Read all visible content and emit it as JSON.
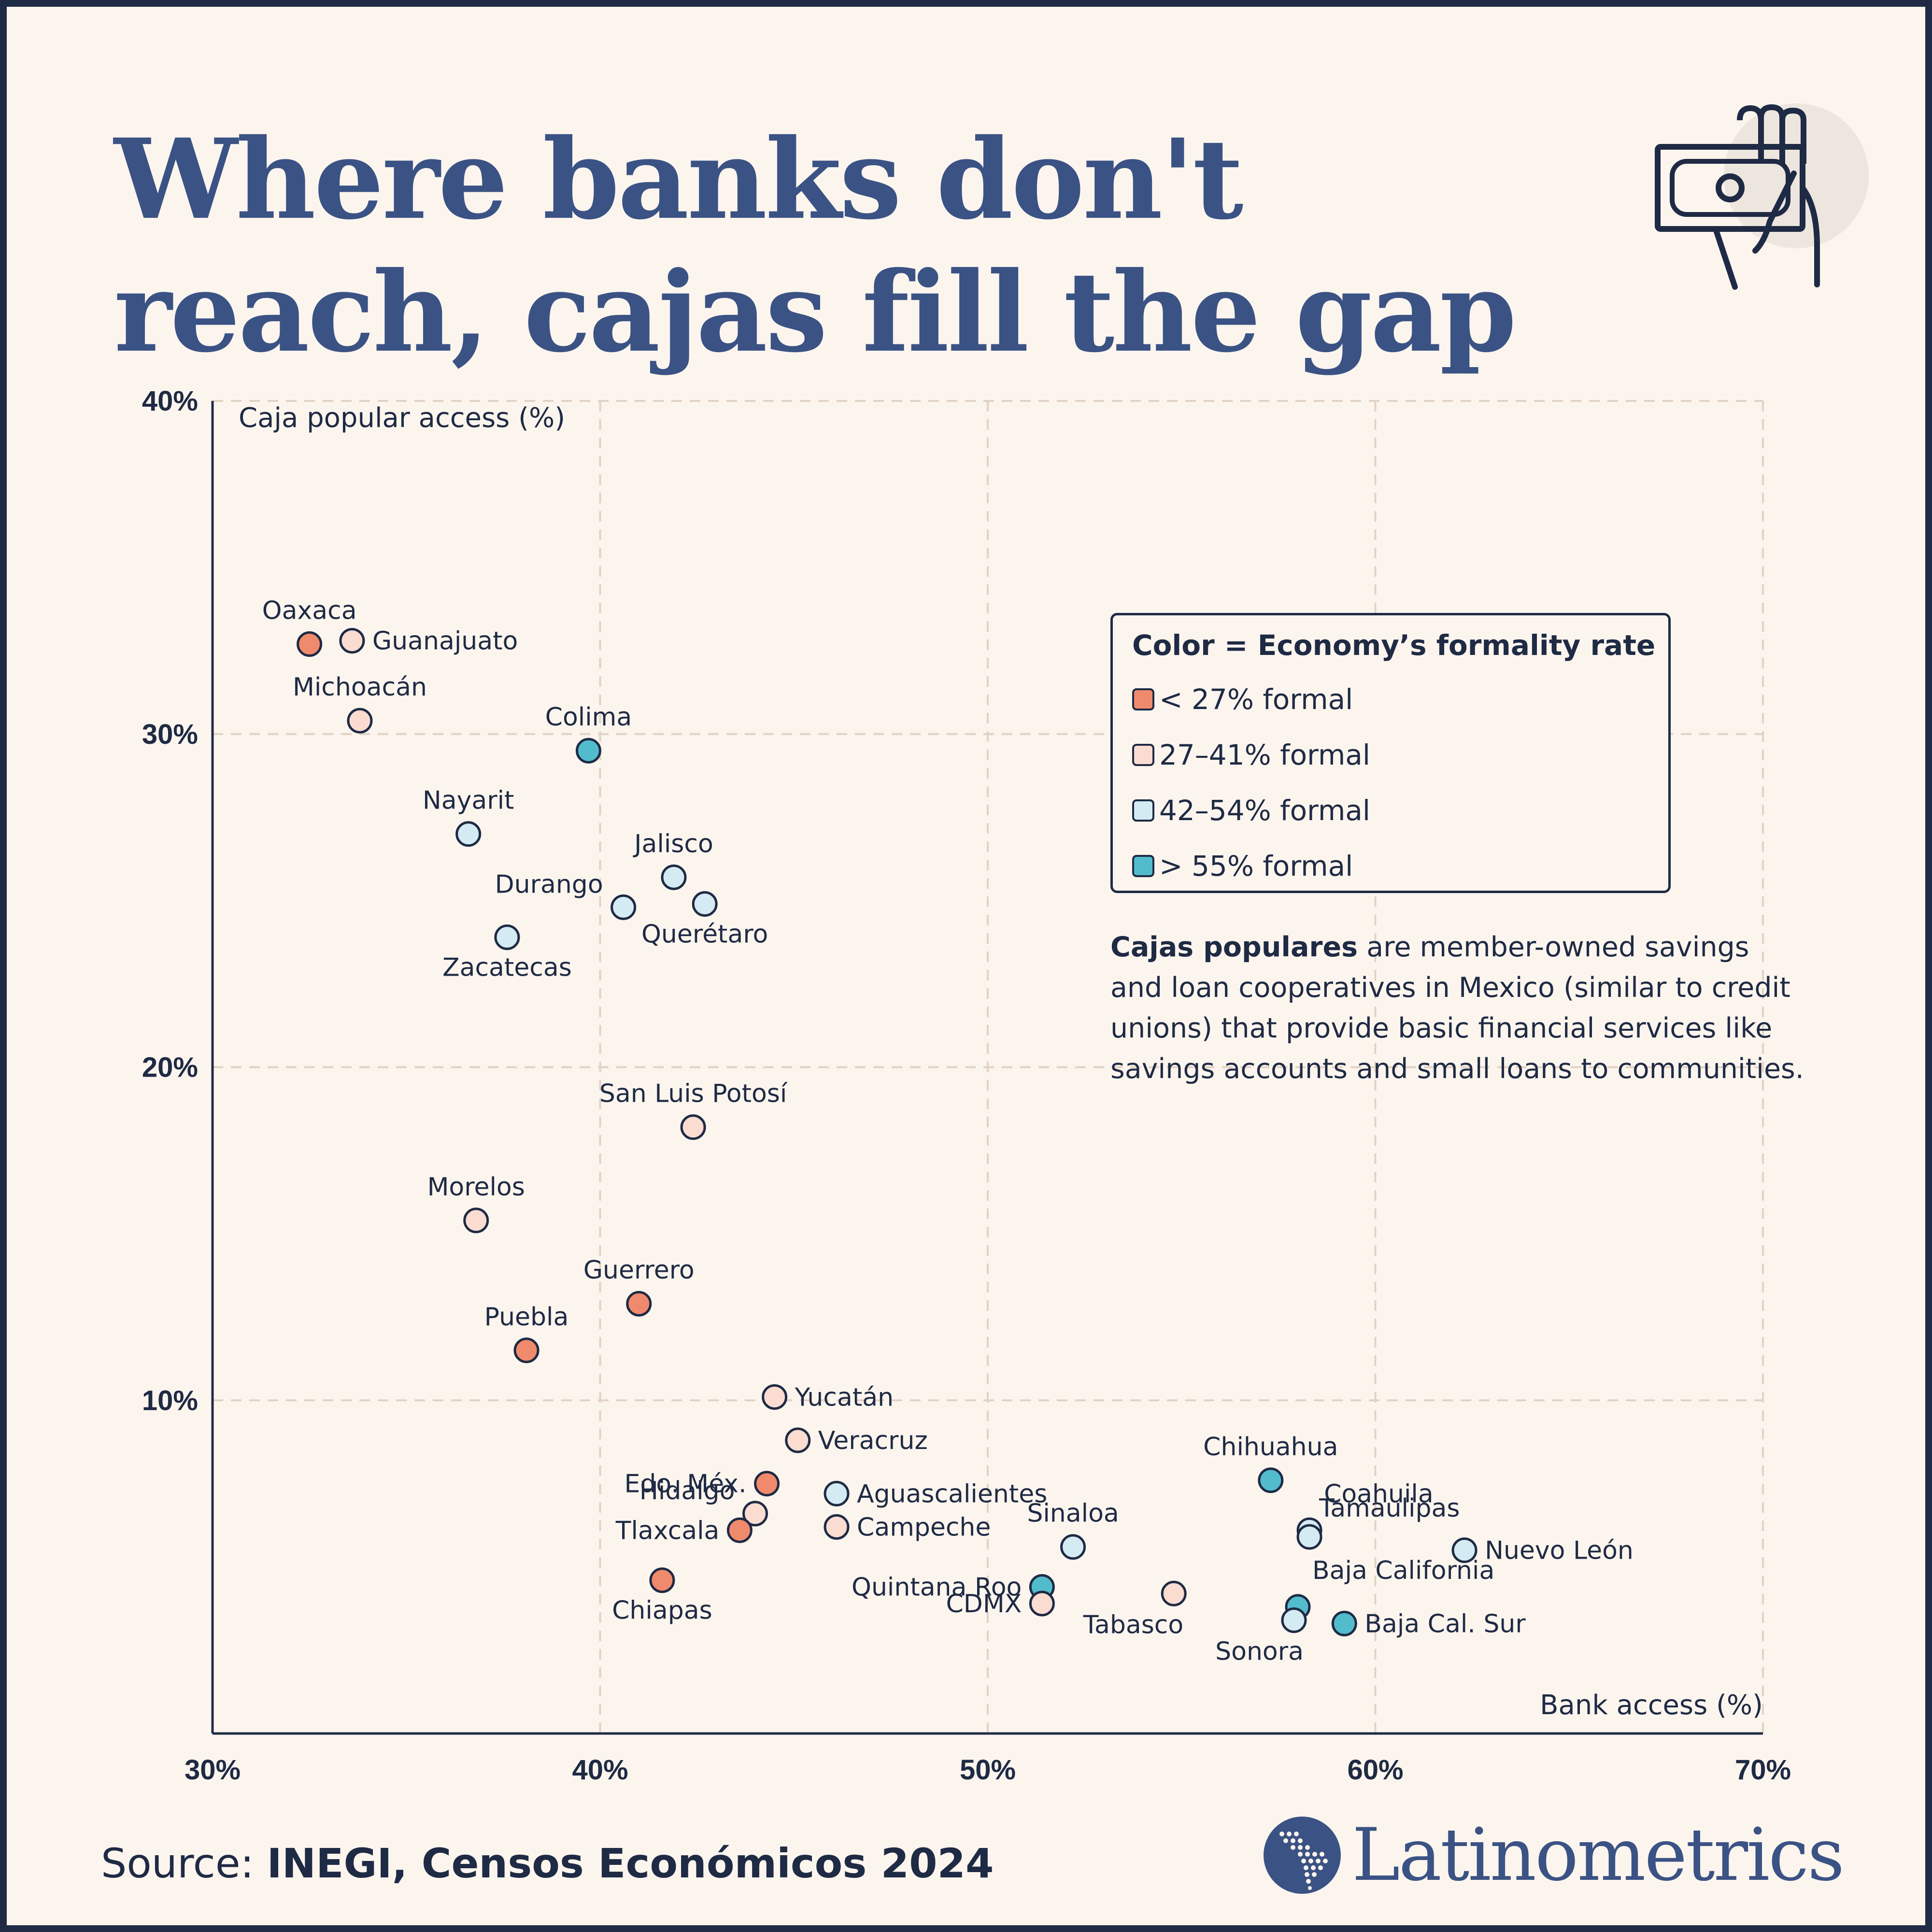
{
  "title": "Where banks don't reach, cajas fill the gap",
  "colors": {
    "background": "#fbf5ee",
    "frame": "#1f2a44",
    "title": "#3b5284",
    "text": "#1f2a44"
  },
  "icons": {
    "header": "money-hand-icon",
    "brand": "latin-america-map-icon"
  },
  "legend": {
    "title": "Color = Economy’s formality rate",
    "items": [
      {
        "key": "lt27",
        "label": "< 27% formal",
        "color": "#f08a6c"
      },
      {
        "key": "27_41",
        "label": "27–41% formal",
        "color": "#fadcd1"
      },
      {
        "key": "42_54",
        "label": "42–54% formal",
        "color": "#d4ebf3"
      },
      {
        "key": "gt55",
        "label": "> 55% formal",
        "color": "#52bccc"
      }
    ]
  },
  "note": {
    "bold": "Cajas populares",
    "text": " are member-owned savings and loan cooperatives in Mexico (similar to credit unions) that provide basic financial services like savings accounts and small loans to communities."
  },
  "source": {
    "prefix": "Source: ",
    "name": "INEGI, Censos Económicos 2024"
  },
  "brand": {
    "name": "Latinometrics"
  },
  "chart_data": {
    "type": "scatter",
    "xlabel": "Bank access (%)",
    "ylabel": "Caja popular access (%)",
    "xlim": [
      30,
      70
    ],
    "ylim": [
      0,
      40
    ],
    "xticks": [
      30,
      40,
      50,
      60,
      70
    ],
    "yticks": [
      10,
      20,
      30,
      40
    ],
    "xtick_labels": [
      "30%",
      "40%",
      "50%",
      "60%",
      "70%"
    ],
    "ytick_labels": [
      "10%",
      "20%",
      "30%",
      "40%"
    ],
    "grid": true,
    "points": [
      {
        "name": "Oaxaca",
        "x": 32.5,
        "y": 32.7,
        "category": "lt27",
        "label_pos": "above"
      },
      {
        "name": "Guanajuato",
        "x": 33.6,
        "y": 32.8,
        "category": "27_41",
        "label_pos": "right"
      },
      {
        "name": "Michoacán",
        "x": 33.8,
        "y": 30.4,
        "category": "27_41",
        "label_pos": "above"
      },
      {
        "name": "Colima",
        "x": 39.7,
        "y": 29.5,
        "category": "gt55",
        "label_pos": "above"
      },
      {
        "name": "Nayarit",
        "x": 36.6,
        "y": 27.0,
        "category": "42_54",
        "label_pos": "above"
      },
      {
        "name": "Jalisco",
        "x": 41.9,
        "y": 25.7,
        "category": "42_54",
        "label_pos": "above"
      },
      {
        "name": "Durango",
        "x": 40.6,
        "y": 24.8,
        "category": "42_54",
        "label_pos": "left-up"
      },
      {
        "name": "Querétaro",
        "x": 42.7,
        "y": 24.9,
        "category": "42_54",
        "label_pos": "below"
      },
      {
        "name": "Zacatecas",
        "x": 37.6,
        "y": 23.9,
        "category": "42_54",
        "label_pos": "below"
      },
      {
        "name": "San Luis Potosí",
        "x": 42.4,
        "y": 18.2,
        "category": "27_41",
        "label_pos": "above"
      },
      {
        "name": "Morelos",
        "x": 36.8,
        "y": 15.4,
        "category": "27_41",
        "label_pos": "above"
      },
      {
        "name": "Guerrero",
        "x": 41.0,
        "y": 12.9,
        "category": "lt27",
        "label_pos": "above"
      },
      {
        "name": "Puebla",
        "x": 38.1,
        "y": 11.5,
        "category": "lt27",
        "label_pos": "above"
      },
      {
        "name": "Yucatán",
        "x": 44.5,
        "y": 10.1,
        "category": "27_41",
        "label_pos": "right"
      },
      {
        "name": "Veracruz",
        "x": 45.1,
        "y": 8.8,
        "category": "27_41",
        "label_pos": "right"
      },
      {
        "name": "Edo. Méx.",
        "x": 44.3,
        "y": 7.5,
        "category": "lt27",
        "label_pos": "left"
      },
      {
        "name": "Aguascalientes",
        "x": 46.1,
        "y": 7.2,
        "category": "42_54",
        "label_pos": "right"
      },
      {
        "name": "Hidalgo",
        "x": 44.0,
        "y": 6.6,
        "category": "27_41",
        "label_pos": "left-up"
      },
      {
        "name": "Tlaxcala",
        "x": 43.6,
        "y": 6.1,
        "category": "lt27",
        "label_pos": "left"
      },
      {
        "name": "Campeche",
        "x": 46.1,
        "y": 6.2,
        "category": "27_41",
        "label_pos": "right"
      },
      {
        "name": "Sinaloa",
        "x": 52.2,
        "y": 5.6,
        "category": "42_54",
        "label_pos": "above"
      },
      {
        "name": "Chiapas",
        "x": 41.6,
        "y": 4.6,
        "category": "lt27",
        "label_pos": "below"
      },
      {
        "name": "Quintana Roo",
        "x": 51.4,
        "y": 4.4,
        "category": "gt55",
        "label_pos": "left"
      },
      {
        "name": "CDMX",
        "x": 51.4,
        "y": 3.9,
        "category": "27_41",
        "label_pos": "left"
      },
      {
        "name": "Tabasco",
        "x": 54.8,
        "y": 4.2,
        "category": "27_41",
        "label_pos": "below-left"
      },
      {
        "name": "Chihuahua",
        "x": 57.3,
        "y": 7.6,
        "category": "gt55",
        "label_pos": "above"
      },
      {
        "name": "Coahuila",
        "x": 58.3,
        "y": 6.1,
        "category": "42_54",
        "label_pos": "above-right"
      },
      {
        "name": "Tamaulipas",
        "x": 58.3,
        "y": 5.9,
        "category": "42_54",
        "label_pos": "above-right2"
      },
      {
        "name": "Nuevo León",
        "x": 62.3,
        "y": 5.5,
        "category": "42_54",
        "label_pos": "right"
      },
      {
        "name": "Baja California",
        "x": 58.0,
        "y": 3.8,
        "category": "gt55",
        "label_pos": "above-right"
      },
      {
        "name": "Sonora",
        "x": 57.9,
        "y": 3.4,
        "category": "42_54",
        "label_pos": "below-left"
      },
      {
        "name": "Baja Cal. Sur",
        "x": 59.2,
        "y": 3.3,
        "category": "gt55",
        "label_pos": "right"
      }
    ]
  }
}
